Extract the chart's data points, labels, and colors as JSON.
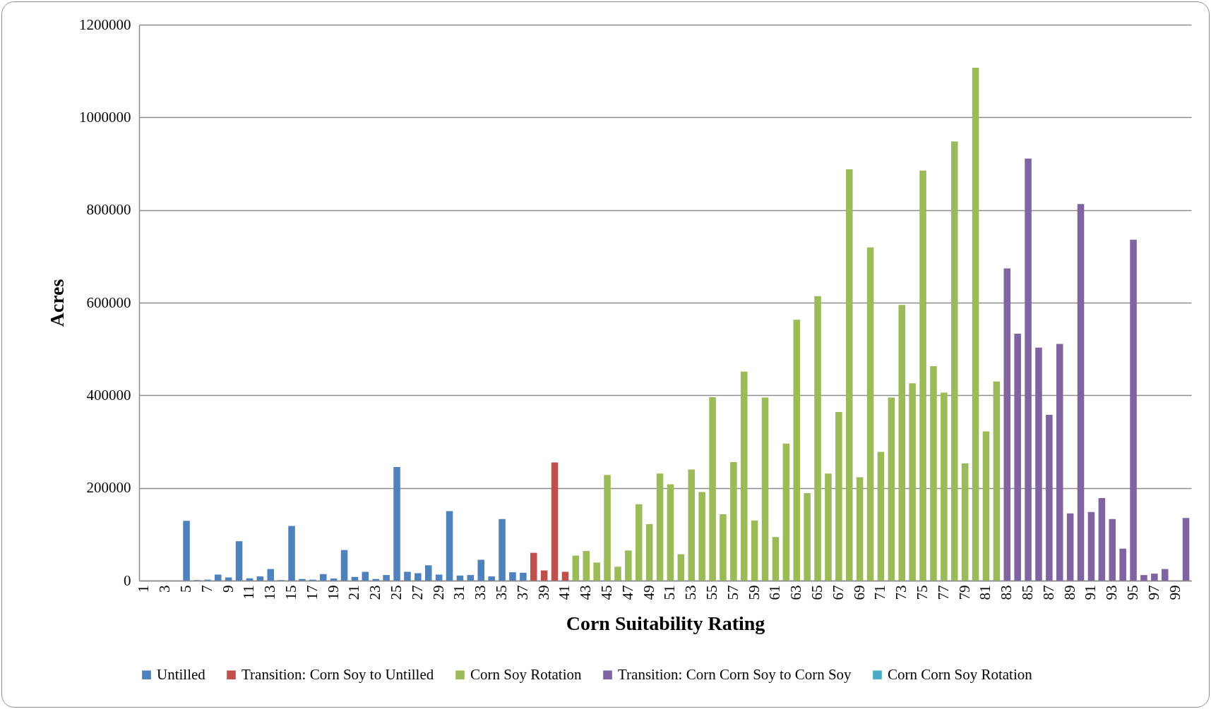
{
  "chart_data": {
    "type": "bar",
    "xlabel": "Corn Suitability Rating",
    "ylabel": "Acres",
    "categories": [
      "1",
      null,
      "3",
      null,
      "5",
      null,
      "7",
      null,
      "9",
      null,
      "11",
      null,
      "13",
      null,
      "15",
      null,
      "17",
      null,
      "19",
      null,
      "21",
      null,
      "23",
      null,
      "25",
      null,
      "27",
      null,
      "29",
      null,
      "31",
      null,
      "33",
      null,
      "35",
      null,
      "37",
      null,
      "39",
      null,
      "41",
      null,
      "43",
      null,
      "45",
      null,
      "47",
      null,
      "49",
      null,
      "51",
      null,
      "53",
      null,
      "55",
      null,
      "57",
      null,
      "59",
      null,
      "61",
      null,
      "63",
      null,
      "65",
      null,
      "67",
      null,
      "69",
      null,
      "71",
      null,
      "73",
      null,
      "75",
      null,
      "77",
      null,
      "79",
      null,
      "81",
      null,
      "83",
      null,
      "85",
      null,
      "87",
      null,
      "89",
      null,
      "91",
      null,
      "93",
      null,
      "95",
      null,
      "97",
      null,
      "99",
      null
    ],
    "series": [
      {
        "name": "Untilled",
        "color": "#4f81bd",
        "values": [
          null,
          null,
          null,
          null,
          129000,
          1000,
          2000,
          13000,
          7000,
          85000,
          5000,
          9000,
          25000,
          1000,
          118000,
          3500,
          2000,
          14000,
          4500,
          66000,
          8000,
          19000,
          3500,
          12000,
          245000,
          19000,
          16000,
          33000,
          13000,
          150000,
          11000,
          12000,
          45000,
          9000,
          133000,
          18000,
          17000,
          null,
          null,
          null,
          null,
          null,
          null,
          null,
          null,
          null,
          null,
          null,
          null,
          null,
          null,
          null,
          null,
          null,
          null,
          null,
          null,
          null,
          null,
          null,
          null,
          null,
          null,
          null,
          null,
          null,
          null,
          null,
          null,
          null,
          null,
          null,
          null,
          null,
          null,
          null,
          null,
          null,
          null,
          null,
          null,
          null,
          null,
          null,
          null,
          null,
          null,
          null,
          null,
          null,
          null,
          null,
          null,
          null,
          null,
          null,
          null,
          null,
          null,
          null
        ]
      },
      {
        "name": "Transition: Corn Soy to Untilled",
        "color": "#c0504d",
        "values": [
          null,
          null,
          null,
          null,
          null,
          null,
          null,
          null,
          null,
          null,
          null,
          null,
          null,
          null,
          null,
          null,
          null,
          null,
          null,
          null,
          null,
          null,
          null,
          null,
          null,
          null,
          null,
          null,
          null,
          null,
          null,
          null,
          null,
          null,
          null,
          null,
          null,
          60000,
          22000,
          255000,
          19000,
          null,
          null,
          null,
          null,
          null,
          null,
          null,
          null,
          null,
          null,
          null,
          null,
          null,
          null,
          null,
          null,
          null,
          null,
          null,
          null,
          null,
          null,
          null,
          null,
          null,
          null,
          null,
          null,
          null,
          null,
          null,
          null,
          null,
          null,
          null,
          null,
          null,
          null,
          null,
          null,
          null,
          null,
          null,
          null,
          null,
          null,
          null,
          null,
          null,
          null,
          null,
          null,
          null,
          null,
          null,
          null,
          null,
          null,
          null
        ]
      },
      {
        "name": "Corn Soy Rotation",
        "color": "#9bbb59",
        "values": [
          null,
          null,
          null,
          null,
          null,
          null,
          null,
          null,
          null,
          null,
          null,
          null,
          null,
          null,
          null,
          null,
          null,
          null,
          null,
          null,
          null,
          null,
          null,
          null,
          null,
          null,
          null,
          null,
          null,
          null,
          null,
          null,
          null,
          null,
          null,
          null,
          null,
          null,
          null,
          null,
          null,
          54000,
          64000,
          39000,
          228000,
          30000,
          65000,
          165000,
          122000,
          231000,
          208000,
          57000,
          240000,
          191000,
          396000,
          143000,
          256000,
          451000,
          130000,
          395000,
          94000,
          296000,
          563000,
          189000,
          614000,
          231000,
          364000,
          888000,
          223000,
          719000,
          278000,
          395000,
          595000,
          426000,
          885000,
          463000,
          406000,
          948000,
          253000,
          1107000,
          322000,
          430000,
          null,
          null,
          null,
          null,
          null,
          null,
          null,
          null,
          null,
          null,
          null,
          null,
          null,
          null,
          null,
          null,
          null,
          null
        ]
      },
      {
        "name": "Transition: Corn Corn Soy to Corn Soy",
        "color": "#8064a2",
        "values": [
          null,
          null,
          null,
          null,
          null,
          null,
          null,
          null,
          null,
          null,
          null,
          null,
          null,
          null,
          null,
          null,
          null,
          null,
          null,
          null,
          null,
          null,
          null,
          null,
          null,
          null,
          null,
          null,
          null,
          null,
          null,
          null,
          null,
          null,
          null,
          null,
          null,
          null,
          null,
          null,
          null,
          null,
          null,
          null,
          null,
          null,
          null,
          null,
          null,
          null,
          null,
          null,
          null,
          null,
          null,
          null,
          null,
          null,
          null,
          null,
          null,
          null,
          null,
          null,
          null,
          null,
          null,
          null,
          null,
          null,
          null,
          null,
          null,
          null,
          null,
          null,
          null,
          null,
          null,
          null,
          null,
          null,
          674000,
          533000,
          911000,
          503000,
          358000,
          511000,
          145000,
          813000,
          148000,
          178000,
          133000,
          69000,
          736000,
          12000,
          15000,
          25000,
          null,
          135000
        ]
      },
      {
        "name": "Corn Corn Soy Rotation",
        "color": "#4bacc6",
        "values": [
          null,
          null,
          null,
          null,
          null,
          null,
          null,
          null,
          null,
          null,
          null,
          null,
          null,
          null,
          null,
          null,
          null,
          null,
          null,
          null,
          null,
          null,
          null,
          null,
          null,
          null,
          null,
          null,
          null,
          null,
          null,
          null,
          null,
          null,
          null,
          null,
          null,
          null,
          null,
          null,
          null,
          null,
          null,
          null,
          null,
          null,
          null,
          null,
          null,
          null,
          null,
          null,
          null,
          null,
          null,
          null,
          null,
          null,
          null,
          null,
          null,
          null,
          null,
          null,
          null,
          null,
          null,
          null,
          null,
          null,
          null,
          null,
          null,
          null,
          null,
          null,
          null,
          null,
          null,
          null,
          null,
          null,
          null,
          null,
          null,
          null,
          null,
          null,
          null,
          null,
          null,
          null,
          null,
          null,
          null,
          null,
          null,
          null,
          null,
          null
        ]
      }
    ],
    "ylim": [
      0,
      1200000
    ],
    "yticks": [
      0,
      200000,
      400000,
      600000,
      800000,
      1000000,
      1200000
    ],
    "grid": "y",
    "legend": "bottom"
  }
}
